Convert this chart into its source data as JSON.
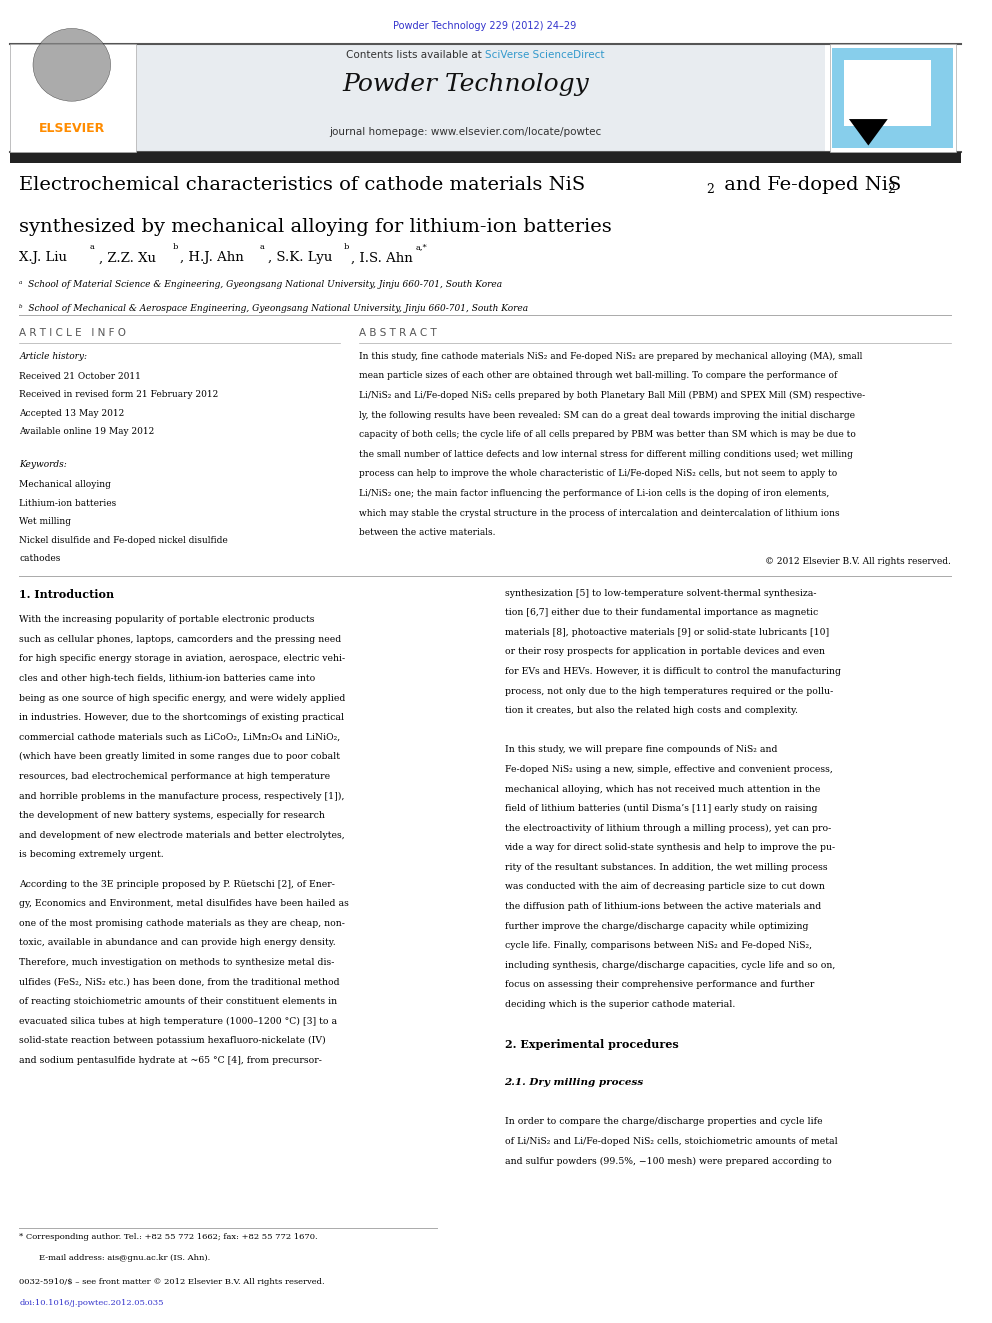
{
  "page_width": 9.92,
  "page_height": 13.23,
  "background_color": "#ffffff",
  "header_journal_text": "Powder Technology 229 (2012) 24–29",
  "header_journal_color": "#3333cc",
  "elsevier_logo_color": "#FF8C00",
  "journal_name": "Powder Technology",
  "journal_homepage": "journal homepage: www.elsevier.com/locate/powtec",
  "copyright_text": "© 2012 Elsevier B.V. All rights reserved."
}
